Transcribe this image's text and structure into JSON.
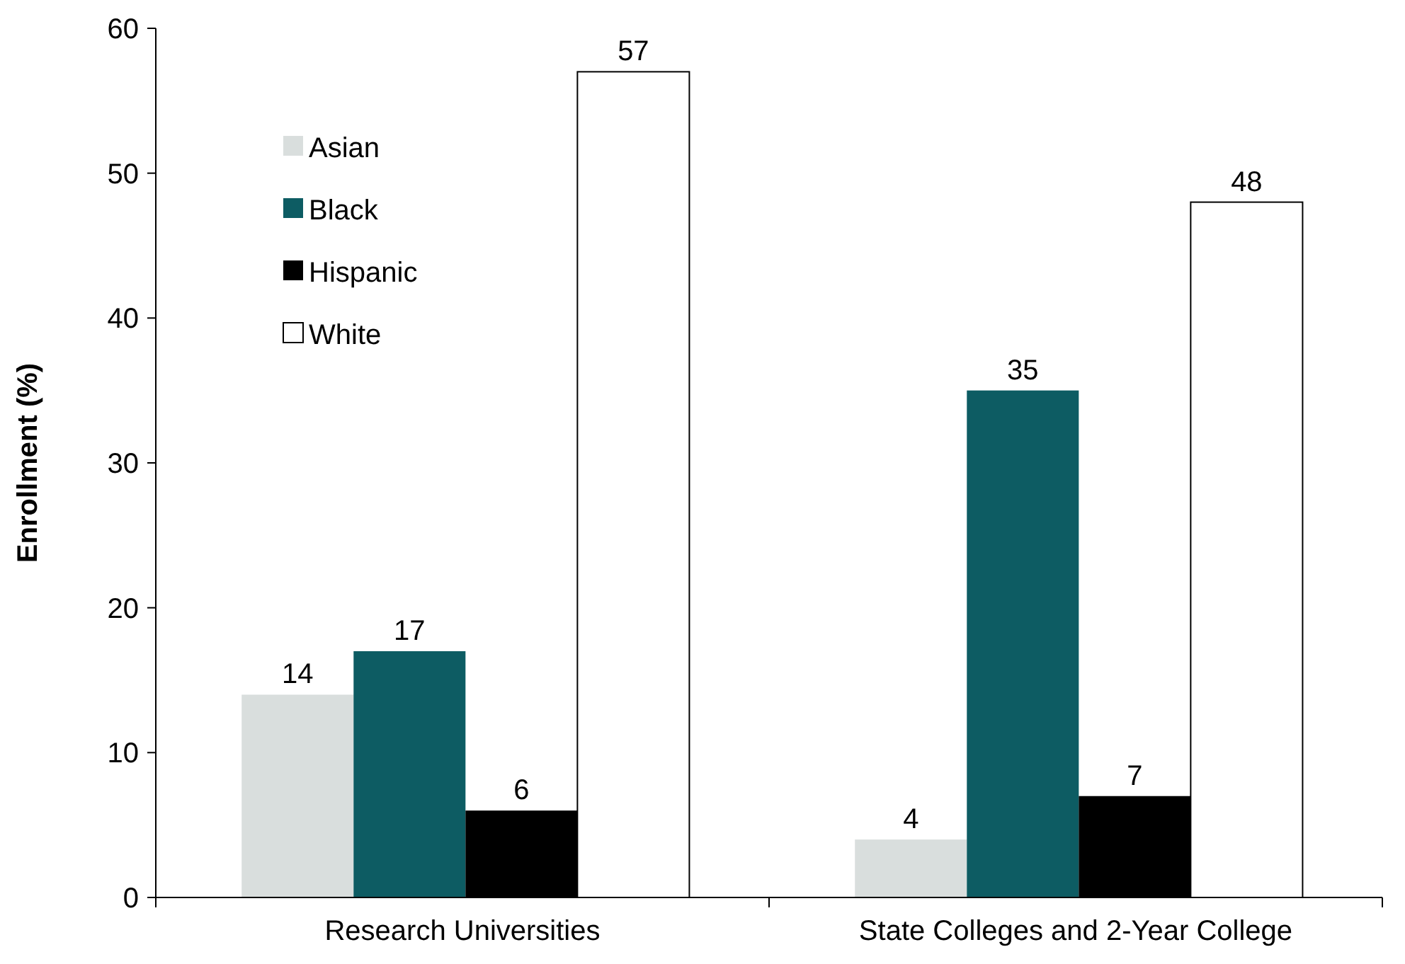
{
  "chart_data": {
    "type": "bar",
    "ylabel": "Enrollment (%)",
    "categories": [
      "Research Universities",
      "State Colleges and 2-Year College"
    ],
    "series": [
      {
        "name": "Asian",
        "color": "#d9dedd",
        "values": [
          14,
          4
        ]
      },
      {
        "name": "Black",
        "color": "#0d5c63",
        "values": [
          17,
          35
        ]
      },
      {
        "name": "Hispanic",
        "color": "#000000",
        "values": [
          6,
          7
        ]
      },
      {
        "name": "White",
        "color": "#ffffff",
        "values": [
          57,
          48
        ]
      }
    ],
    "ylim": [
      0,
      60
    ],
    "yticks": [
      0,
      10,
      20,
      30,
      40,
      50,
      60
    ],
    "data_labels": true,
    "legend": "top left",
    "grid": false
  }
}
